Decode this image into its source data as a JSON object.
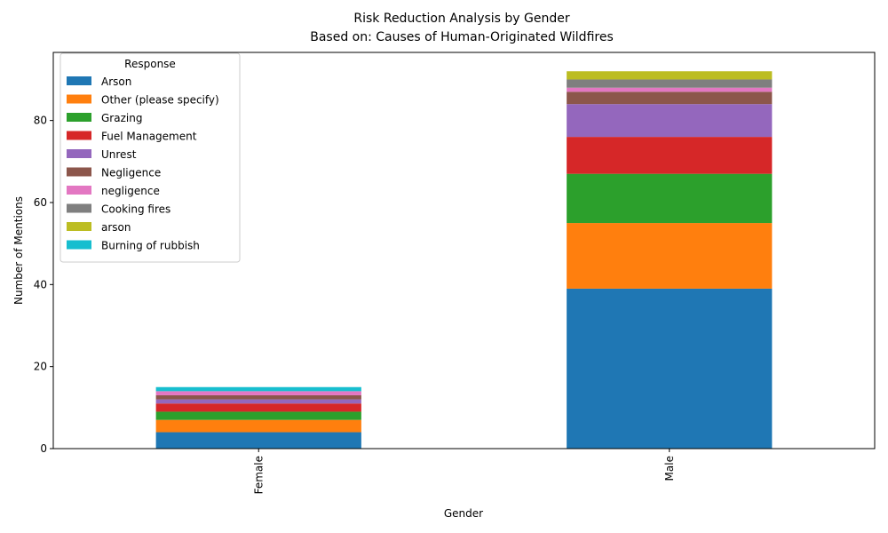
{
  "chart_data": {
    "type": "bar",
    "stacked": true,
    "title": "Risk Reduction Analysis by Gender",
    "subtitle": "Based on: Causes of Human-Originated Wildfires",
    "xlabel": "Gender",
    "ylabel": "Number of Mentions",
    "categories": [
      "Female",
      "Male"
    ],
    "ylim": [
      0,
      96.6
    ],
    "yticks": [
      0,
      20,
      40,
      60,
      80
    ],
    "grid": false,
    "legend": {
      "title": "Response",
      "placement": "top-left"
    },
    "series": [
      {
        "name": "Arson",
        "color": "#1f77b4",
        "values": [
          4,
          39
        ]
      },
      {
        "name": "Other (please specify)",
        "color": "#ff7f0e",
        "values": [
          3,
          16
        ]
      },
      {
        "name": "Grazing",
        "color": "#2ca02c",
        "values": [
          2,
          12
        ]
      },
      {
        "name": "Fuel Management",
        "color": "#d62728",
        "values": [
          2,
          9
        ]
      },
      {
        "name": "Unrest",
        "color": "#9467bd",
        "values": [
          1,
          8
        ]
      },
      {
        "name": "Negligence",
        "color": "#8c564b",
        "values": [
          1,
          3
        ]
      },
      {
        "name": "negligence",
        "color": "#e377c2",
        "values": [
          1,
          1
        ]
      },
      {
        "name": "Cooking fires",
        "color": "#7f7f7f",
        "values": [
          0,
          2
        ]
      },
      {
        "name": "arson",
        "color": "#bcbd22",
        "values": [
          0,
          2
        ]
      },
      {
        "name": "Burning of rubbish",
        "color": "#17becf",
        "values": [
          1,
          0
        ]
      }
    ]
  }
}
